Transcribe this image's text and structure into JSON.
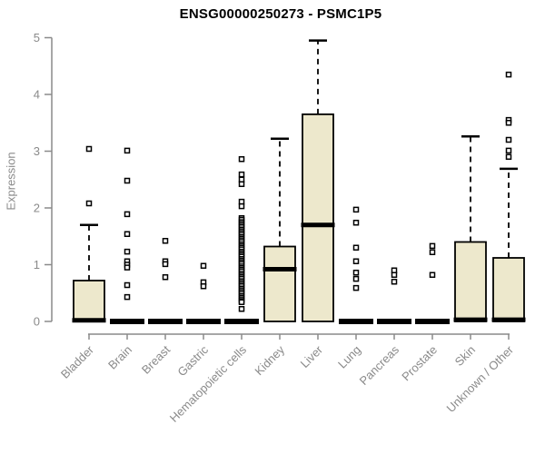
{
  "colors": {
    "background": "#ffffff",
    "box_fill": "#ede8cc",
    "box_border": "#000000",
    "median": "#000000",
    "whisker": "#000000",
    "outlier_border": "#000000",
    "outlier_fill": "#ffffff",
    "axis": "#8a8a8a",
    "tick_label": "#8a8a8a",
    "title": "#000000"
  },
  "chart_data": {
    "type": "boxplot",
    "title": "ENSG00000250273 - PSMC1P5",
    "xlabel": "",
    "ylabel": "Expression",
    "ylim": [
      0,
      5
    ],
    "yticks": [
      0,
      1,
      2,
      3,
      4,
      5
    ],
    "grid": false,
    "legend": false,
    "categories": [
      "Bladder",
      "Brain",
      "Breast",
      "Gastric",
      "Hematopoietic cells",
      "Kidney",
      "Liver",
      "Lung",
      "Pancreas",
      "Prostate",
      "Skin",
      "Unknown / Other"
    ],
    "boxes": [
      {
        "label": "Bladder",
        "q1": 0,
        "median": 0.02,
        "q3": 0.72,
        "whisker_low": 0,
        "whisker_high": 1.7,
        "outliers": [
          3.04,
          2.08
        ]
      },
      {
        "label": "Brain",
        "q1": 0,
        "median": 0,
        "q3": 0,
        "whisker_low": 0,
        "whisker_high": 0,
        "outliers": [
          3.01,
          2.48,
          1.89,
          1.54,
          1.23,
          1.06,
          1.0,
          0.95,
          0.64,
          0.43
        ]
      },
      {
        "label": "Breast",
        "q1": 0,
        "median": 0,
        "q3": 0,
        "whisker_low": 0,
        "whisker_high": 0,
        "outliers": [
          1.42,
          1.06,
          1.01,
          0.78
        ]
      },
      {
        "label": "Gastric",
        "q1": 0,
        "median": 0,
        "q3": 0,
        "whisker_low": 0,
        "whisker_high": 0,
        "outliers": [
          0.98,
          0.69,
          0.62
        ]
      },
      {
        "label": "Hematopoietic cells",
        "q1": 0,
        "median": 0,
        "q3": 0,
        "whisker_low": 0,
        "whisker_high": 0,
        "outliers": [
          2.86,
          2.59,
          2.5,
          2.42,
          2.11,
          2.03,
          1.82,
          1.79,
          1.75,
          1.72,
          1.69,
          1.66,
          1.62,
          1.59,
          1.56,
          1.53,
          1.49,
          1.46,
          1.43,
          1.4,
          1.36,
          1.33,
          1.3,
          1.27,
          1.23,
          1.2,
          1.17,
          1.14,
          1.1,
          1.07,
          1.04,
          1.01,
          0.97,
          0.94,
          0.91,
          0.88,
          0.84,
          0.81,
          0.78,
          0.75,
          0.71,
          0.68,
          0.65,
          0.62,
          0.58,
          0.55,
          0.52,
          0.49,
          0.45,
          0.42,
          0.39,
          0.36,
          0.34,
          0.22
        ]
      },
      {
        "label": "Kidney",
        "q1": 0,
        "median": 0.92,
        "q3": 1.32,
        "whisker_low": 0,
        "whisker_high": 3.22,
        "outliers": []
      },
      {
        "label": "Liver",
        "q1": 0,
        "median": 1.7,
        "q3": 3.65,
        "whisker_low": 0,
        "whisker_high": 4.95,
        "outliers": []
      },
      {
        "label": "Lung",
        "q1": 0,
        "median": 0,
        "q3": 0,
        "whisker_low": 0,
        "whisker_high": 0,
        "outliers": [
          1.97,
          1.74,
          1.3,
          1.06,
          0.86,
          0.75,
          0.59
        ]
      },
      {
        "label": "Pancreas",
        "q1": 0,
        "median": 0,
        "q3": 0,
        "whisker_low": 0,
        "whisker_high": 0,
        "outliers": [
          0.9,
          0.82,
          0.7
        ]
      },
      {
        "label": "Prostate",
        "q1": 0,
        "median": 0,
        "q3": 0,
        "whisker_low": 0,
        "whisker_high": 0,
        "outliers": [
          1.33,
          1.22,
          0.82
        ]
      },
      {
        "label": "Skin",
        "q1": 0,
        "median": 0.03,
        "q3": 1.4,
        "whisker_low": 0,
        "whisker_high": 3.26,
        "outliers": []
      },
      {
        "label": "Unknown / Other",
        "q1": 0,
        "median": 0.03,
        "q3": 1.12,
        "whisker_low": 0,
        "whisker_high": 2.69,
        "outliers": [
          4.35,
          3.55,
          3.5,
          3.2,
          3.01,
          2.9
        ]
      }
    ]
  }
}
